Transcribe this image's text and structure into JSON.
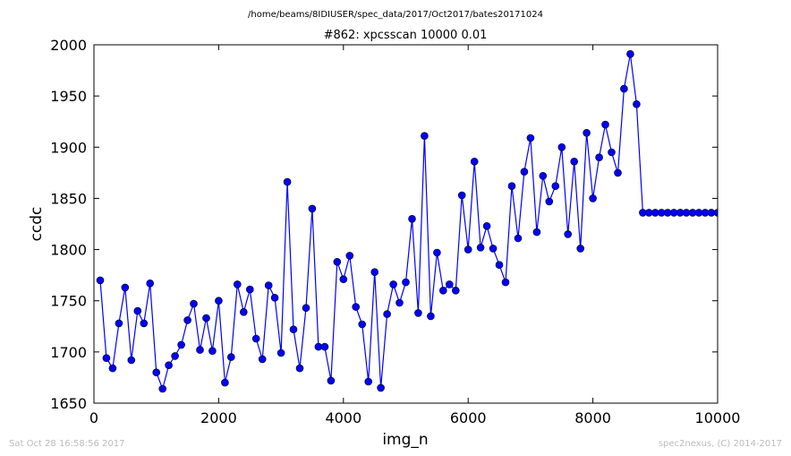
{
  "suptitle": "/home/beams/8IDIUSER/spec_data/2017/Oct2017/bates20171024",
  "footer": {
    "timestamp": "Sat Oct 28 16:58:56 2017",
    "credit": "spec2nexus, (C) 2014-2017"
  },
  "chart_data": {
    "type": "line",
    "title": "#862: xpcsscan 10000 0.01",
    "xlabel": "img_n",
    "ylabel": "ccdc",
    "xlim": [
      0,
      10000
    ],
    "ylim": [
      1650,
      2000
    ],
    "xticks": [
      "0",
      "2000",
      "4000",
      "6000",
      "8000",
      "10000"
    ],
    "yticks": [
      "1650",
      "1700",
      "1750",
      "1800",
      "1850",
      "1900",
      "1950",
      "2000"
    ],
    "grid": false,
    "line_color": "#0000ff",
    "marker_color": "#0000ff",
    "marker": "circle",
    "x": [
      100,
      200,
      300,
      400,
      500,
      600,
      700,
      800,
      900,
      1000,
      1100,
      1200,
      1300,
      1400,
      1500,
      1600,
      1700,
      1800,
      1900,
      2000,
      2100,
      2200,
      2300,
      2400,
      2500,
      2600,
      2700,
      2800,
      2900,
      3000,
      3100,
      3200,
      3300,
      3400,
      3500,
      3600,
      3700,
      3800,
      3900,
      4000,
      4100,
      4200,
      4300,
      4400,
      4500,
      4600,
      4700,
      4800,
      4900,
      5000,
      5100,
      5200,
      5300,
      5400,
      5500,
      5600,
      5700,
      5800,
      5900,
      6000,
      6100,
      6200,
      6300,
      6400,
      6500,
      6600,
      6700,
      6800,
      6900,
      7000,
      7100,
      7200,
      7300,
      7400,
      7500,
      7600,
      7700,
      7800,
      7900,
      8000,
      8100,
      8200,
      8300,
      8400,
      8500,
      8600,
      8700,
      8800,
      8900,
      9000,
      9100,
      9200,
      9300,
      9400,
      9500,
      9600,
      9700,
      9800,
      9900,
      10000
    ],
    "y": [
      1770,
      1694,
      1684,
      1728,
      1763,
      1692,
      1740,
      1728,
      1767,
      1680,
      1664,
      1687,
      1696,
      1707,
      1731,
      1747,
      1702,
      1733,
      1701,
      1750,
      1670,
      1695,
      1766,
      1739,
      1761,
      1713,
      1693,
      1765,
      1753,
      1699,
      1866,
      1722,
      1684,
      1743,
      1840,
      1705,
      1705,
      1672,
      1788,
      1771,
      1794,
      1744,
      1727,
      1671,
      1778,
      1665,
      1737,
      1766,
      1748,
      1768,
      1830,
      1738,
      1911,
      1735,
      1797,
      1760,
      1766,
      1760,
      1853,
      1800,
      1886,
      1802,
      1823,
      1801,
      1785,
      1768,
      1862,
      1811,
      1876,
      1909,
      1817,
      1872,
      1847,
      1862,
      1900,
      1815,
      1886,
      1801,
      1914,
      1850,
      1890,
      1922,
      1895,
      1875,
      1957,
      1991,
      1942,
      1836,
      1836,
      1836,
      1836,
      1836,
      1836,
      1836,
      1836,
      1836,
      1836,
      1836,
      1836,
      1836
    ]
  }
}
